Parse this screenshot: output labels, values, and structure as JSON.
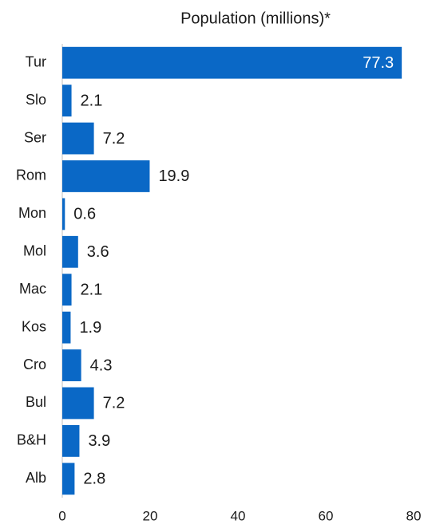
{
  "chart_data": {
    "type": "bar",
    "orientation": "horizontal",
    "title": "Population (millions)*",
    "categories": [
      "Tur",
      "Slo",
      "Ser",
      "Rom",
      "Mon",
      "Mol",
      "Mac",
      "Kos",
      "Cro",
      "Bul",
      "B&H",
      "Alb"
    ],
    "values": [
      77.3,
      2.1,
      7.2,
      19.9,
      0.6,
      3.6,
      2.1,
      1.9,
      4.3,
      7.2,
      3.9,
      2.8
    ],
    "color": "#0a68c6",
    "xlim": [
      0,
      80
    ],
    "xticks": [
      0,
      20,
      40,
      60,
      80
    ],
    "grid": false
  }
}
